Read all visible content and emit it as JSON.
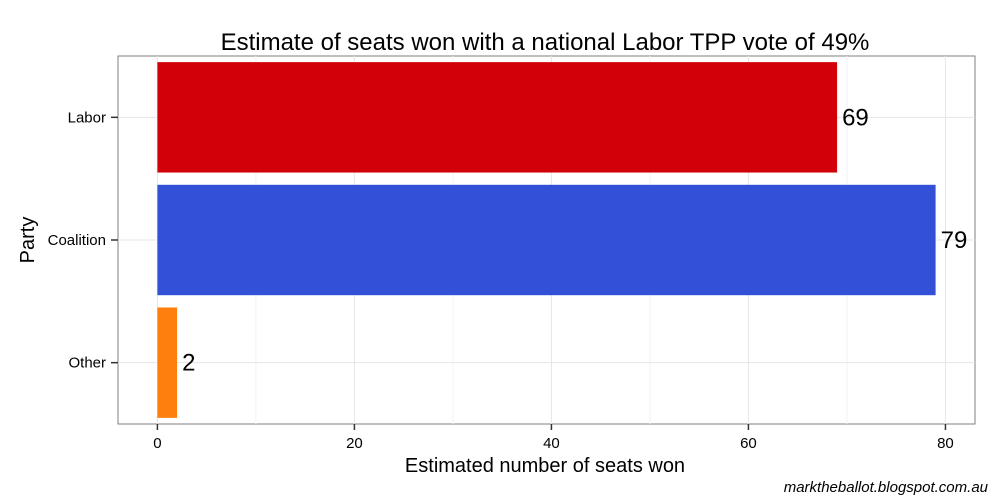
{
  "chart_data": {
    "type": "bar",
    "orientation": "horizontal",
    "title": "Estimate of seats won with a national Labor TPP vote of 49%",
    "xlabel": "Estimated number of seats won",
    "ylabel": "Party",
    "categories": [
      "Labor",
      "Coalition",
      "Other"
    ],
    "values": [
      69,
      79,
      2
    ],
    "colors": [
      "#d20008",
      "#3350d9",
      "#ff7f0e"
    ],
    "xlim": [
      -4,
      83
    ],
    "xticks": [
      0,
      20,
      40,
      60,
      80
    ],
    "grid": true,
    "legend": "none"
  },
  "credit": "marktheballot.blogspot.com.au"
}
